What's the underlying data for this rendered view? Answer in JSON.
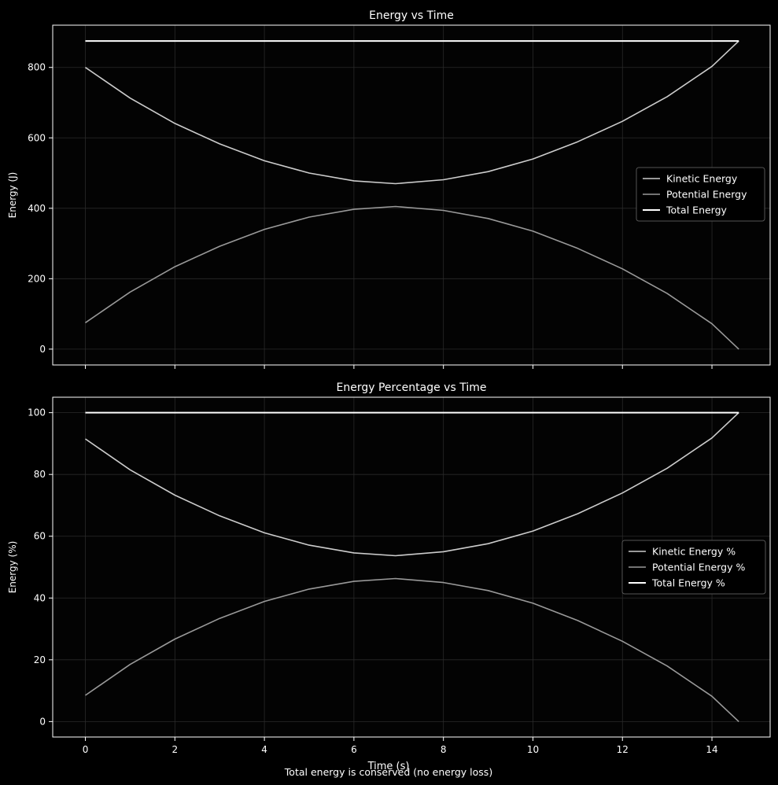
{
  "figure": {
    "background": "#000000",
    "footnote": "Total energy is conserved (no energy loss)",
    "shared_xlabel": "Time (s)"
  },
  "chart_data": [
    {
      "type": "line",
      "title": "Energy vs Time",
      "xlabel": "",
      "ylabel": "Energy (J)",
      "xlim": [
        -0.73,
        15.3
      ],
      "ylim": [
        -45,
        920
      ],
      "xticks": [
        0,
        2,
        4,
        6,
        8,
        10,
        12,
        14
      ],
      "yticks": [
        0,
        200,
        400,
        600,
        800
      ],
      "show_xtick_labels": false,
      "grid": true,
      "legend_position": "center-right",
      "series": [
        {
          "name": "Kinetic Energy",
          "color": "#cccccc",
          "x": [
            0,
            1,
            2,
            3,
            4,
            5,
            6,
            6.93,
            8,
            9,
            10,
            11,
            12,
            13,
            14,
            14.6
          ],
          "y": [
            800,
            713,
            641,
            583,
            535,
            500,
            478,
            470,
            481,
            504,
            540,
            589,
            647,
            717,
            803,
            875
          ]
        },
        {
          "name": "Potential Energy",
          "color": "#999999",
          "x": [
            0,
            1,
            2,
            3,
            4,
            5,
            6,
            6.93,
            8,
            9,
            10,
            11,
            12,
            13,
            14,
            14.6
          ],
          "y": [
            75,
            162,
            234,
            292,
            340,
            375,
            397,
            405,
            394,
            371,
            335,
            286,
            228,
            158,
            72,
            0
          ]
        },
        {
          "name": "Total Energy",
          "color": "#ffffff",
          "x": [
            0,
            14.6
          ],
          "y": [
            875,
            875
          ]
        }
      ]
    },
    {
      "type": "line",
      "title": "Energy Percentage vs Time",
      "xlabel": "Time (s)",
      "ylabel": "Energy (%)",
      "xlim": [
        -0.73,
        15.3
      ],
      "ylim": [
        -5,
        105
      ],
      "xticks": [
        0,
        2,
        4,
        6,
        8,
        10,
        12,
        14
      ],
      "yticks": [
        0,
        20,
        40,
        60,
        80,
        100
      ],
      "show_xtick_labels": true,
      "grid": true,
      "legend_position": "center-right",
      "series": [
        {
          "name": "Kinetic Energy %",
          "color": "#cccccc",
          "x": [
            0,
            1,
            2,
            3,
            4,
            5,
            6,
            6.93,
            8,
            9,
            10,
            11,
            12,
            13,
            14,
            14.6
          ],
          "y": [
            91.5,
            81.5,
            73.3,
            66.6,
            61.1,
            57.1,
            54.6,
            53.7,
            55.0,
            57.6,
            61.7,
            67.3,
            74.0,
            82.0,
            91.8,
            100
          ]
        },
        {
          "name": "Potential Energy %",
          "color": "#999999",
          "x": [
            0,
            1,
            2,
            3,
            4,
            5,
            6,
            6.93,
            8,
            9,
            10,
            11,
            12,
            13,
            14,
            14.6
          ],
          "y": [
            8.5,
            18.5,
            26.7,
            33.4,
            38.9,
            42.9,
            45.4,
            46.3,
            45.0,
            42.4,
            38.3,
            32.7,
            26.0,
            18.0,
            8.2,
            0
          ]
        },
        {
          "name": "Total Energy %",
          "color": "#ffffff",
          "x": [
            0,
            14.6
          ],
          "y": [
            100,
            100
          ]
        }
      ]
    }
  ]
}
